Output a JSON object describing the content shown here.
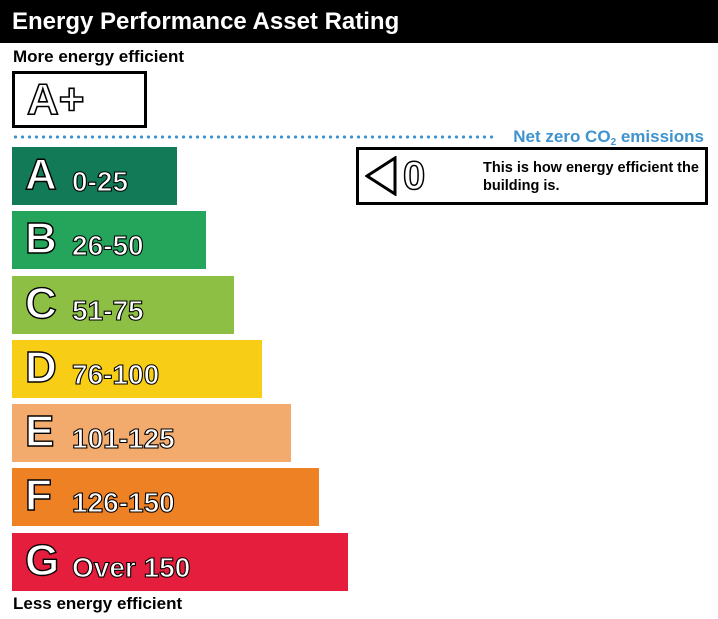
{
  "title": "Energy Performance Asset Rating",
  "more_label": "More energy efficient",
  "less_label": "Less energy efficient",
  "top_rating": "A+",
  "net_zero": {
    "text": "Net zero CO",
    "subscript": "2",
    "suffix": " emissions",
    "color": "#3f93cf"
  },
  "bands": [
    {
      "letter": "A",
      "range": "0-25",
      "color": "#137a58"
    },
    {
      "letter": "B",
      "range": "26-50",
      "color": "#24a55b"
    },
    {
      "letter": "C",
      "range": "51-75",
      "color": "#8dbf45"
    },
    {
      "letter": "D",
      "range": "76-100",
      "color": "#f7cd15"
    },
    {
      "letter": "E",
      "range": "101-125",
      "color": "#f2aa6d"
    },
    {
      "letter": "F",
      "range": "126-150",
      "color": "#ee8124"
    },
    {
      "letter": "G",
      "range": "Over 150",
      "color": "#e41e3c"
    }
  ],
  "current_rating": {
    "value": "0",
    "description": "This is how energy efficient the building is."
  }
}
